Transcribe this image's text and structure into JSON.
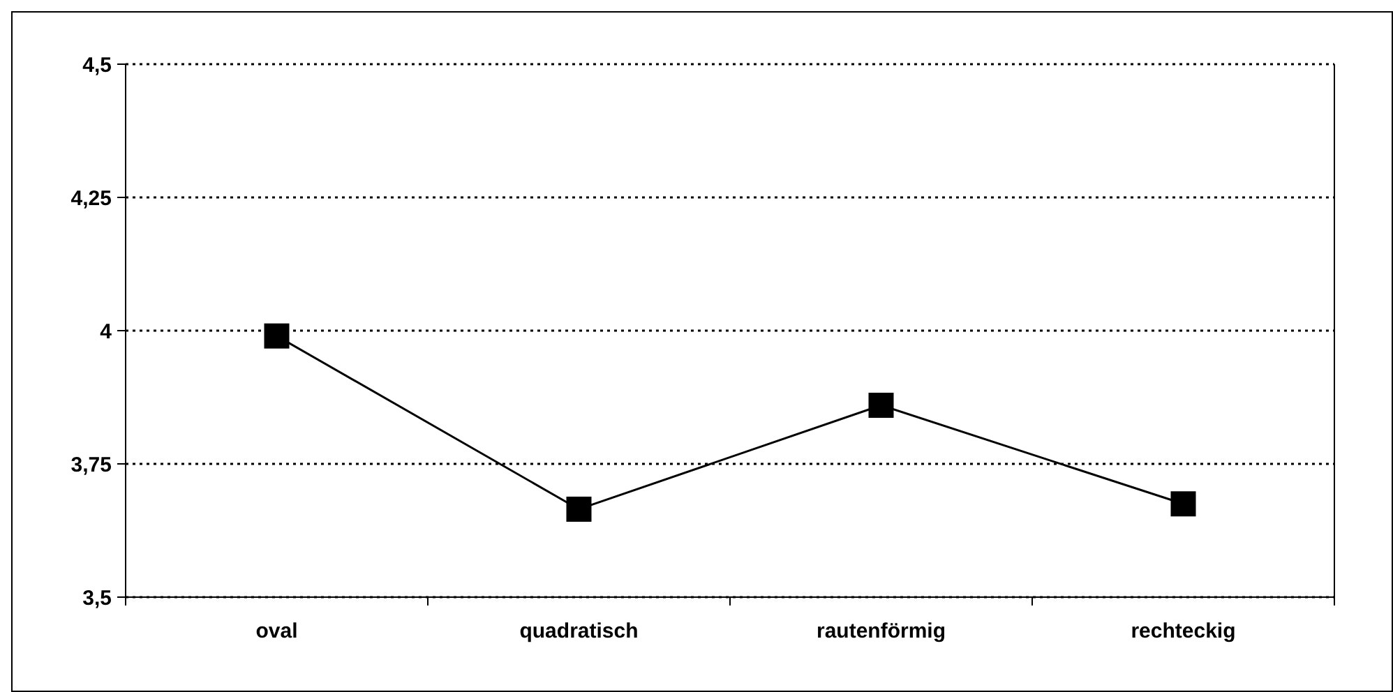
{
  "chart_data": {
    "type": "line",
    "categories": [
      "oval",
      "quadratisch",
      "rautenförmig",
      "rechteckig"
    ],
    "series": [
      {
        "color": "#000000",
        "values": [
          3.99,
          3.665,
          3.86,
          3.675
        ]
      }
    ],
    "ylim": [
      3.5,
      4.5
    ],
    "yticks": [
      {
        "value": 3.5,
        "label": "3,5"
      },
      {
        "value": 3.75,
        "label": "3,75"
      },
      {
        "value": 4,
        "label": "4"
      },
      {
        "value": 4.25,
        "label": "4,25"
      },
      {
        "value": 4.5,
        "label": "4,5"
      }
    ],
    "grid": "y",
    "marker": "square",
    "line_style": "solid"
  }
}
